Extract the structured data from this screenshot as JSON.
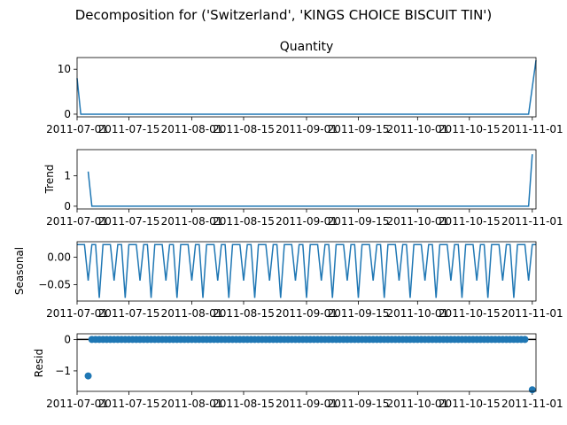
{
  "figure_title": "Decomposition for ('Switzerland', 'KINGS CHOICE BISCUIT TIN')",
  "colors": {
    "line": "#1f77b4",
    "axis": "#000000",
    "background": "#ffffff"
  },
  "chart_data": [
    {
      "type": "line",
      "title": "Quantity",
      "xlabel": "",
      "ylabel": "",
      "x_range": [
        "2011-07-01",
        "2011-11-02"
      ],
      "ylim": [
        -0.6,
        12.6
      ],
      "y_ticks": [
        0,
        10
      ],
      "y_tick_labels": [
        "0",
        "10"
      ],
      "x_ticks": [
        "2011-07-01",
        "2011-07-15",
        "2011-08-01",
        "2011-08-15",
        "2011-09-01",
        "2011-09-15",
        "2011-10-01",
        "2011-10-15",
        "2011-11-01"
      ],
      "x_tick_labels": [
        "2011-07-01",
        "2011-07-15",
        "2011-08-01",
        "2011-08-15",
        "2011-09-01",
        "2011-09-15",
        "2011-10-01",
        "2011-10-15",
        "2011-11-01"
      ],
      "grid": false,
      "series": [
        {
          "x": [
            "2011-07-01",
            "2011-07-02",
            "2011-10-31",
            "2011-11-02"
          ],
          "y": [
            8,
            0,
            0,
            12
          ]
        }
      ]
    },
    {
      "type": "line",
      "title": "",
      "xlabel": "",
      "ylabel": "Trend",
      "x_range": [
        "2011-07-01",
        "2011-11-02"
      ],
      "ylim": [
        -0.09,
        1.86
      ],
      "y_ticks": [
        0,
        1
      ],
      "y_tick_labels": [
        "0",
        "1"
      ],
      "x_ticks": [
        "2011-07-01",
        "2011-07-15",
        "2011-08-01",
        "2011-08-15",
        "2011-09-01",
        "2011-09-15",
        "2011-10-01",
        "2011-10-15",
        "2011-11-01"
      ],
      "x_tick_labels": [
        "2011-07-01",
        "2011-07-15",
        "2011-08-01",
        "2011-08-15",
        "2011-09-01",
        "2011-09-15",
        "2011-10-01",
        "2011-10-15",
        "2011-11-01"
      ],
      "grid": false,
      "series": [
        {
          "x": [
            "2011-07-04",
            "2011-07-05",
            "2011-10-31",
            "2011-11-01"
          ],
          "y": [
            1.14,
            0,
            0,
            1.71
          ]
        }
      ]
    },
    {
      "type": "line",
      "title": "",
      "xlabel": "",
      "ylabel": "Seasonal",
      "x_range": [
        "2011-07-01",
        "2011-11-02"
      ],
      "ylim": [
        -0.08,
        0.028
      ],
      "y_ticks": [
        0.0,
        -0.05
      ],
      "y_tick_labels": [
        "0.00",
        "−0.05"
      ],
      "x_ticks": [
        "2011-07-01",
        "2011-07-15",
        "2011-08-01",
        "2011-08-15",
        "2011-09-01",
        "2011-09-15",
        "2011-10-01",
        "2011-10-15",
        "2011-11-01"
      ],
      "x_tick_labels": [
        "2011-07-01",
        "2011-07-15",
        "2011-08-01",
        "2011-08-15",
        "2011-09-01",
        "2011-09-15",
        "2011-10-01",
        "2011-10-15",
        "2011-11-01"
      ],
      "grid": false,
      "period_days": 7,
      "pattern": [
        0.0228,
        0.0228,
        0.0228,
        -0.0429,
        0.0228,
        0.0228,
        -0.0743
      ],
      "series": []
    },
    {
      "type": "scatter",
      "title": "",
      "xlabel": "",
      "ylabel": "Resid",
      "x_range": [
        "2011-07-01",
        "2011-11-02"
      ],
      "ylim": [
        -1.65,
        0.18
      ],
      "y_ticks": [
        0,
        -1
      ],
      "y_tick_labels": [
        "0",
        "−1"
      ],
      "x_ticks": [
        "2011-07-01",
        "2011-07-15",
        "2011-08-01",
        "2011-08-15",
        "2011-09-01",
        "2011-09-15",
        "2011-10-01",
        "2011-10-15",
        "2011-11-01"
      ],
      "x_tick_labels": [
        "2011-07-01",
        "2011-07-15",
        "2011-08-01",
        "2011-08-15",
        "2011-09-01",
        "2011-09-15",
        "2011-10-01",
        "2011-10-15",
        "2011-11-01"
      ],
      "grid": false,
      "zero_line": true,
      "series": [
        {
          "x_start": "2011-07-05",
          "x_end": "2011-10-30",
          "constant_y": 0
        },
        {
          "x": [
            "2011-07-04",
            "2011-11-01"
          ],
          "y": [
            -1.16,
            -1.6
          ]
        }
      ]
    }
  ]
}
